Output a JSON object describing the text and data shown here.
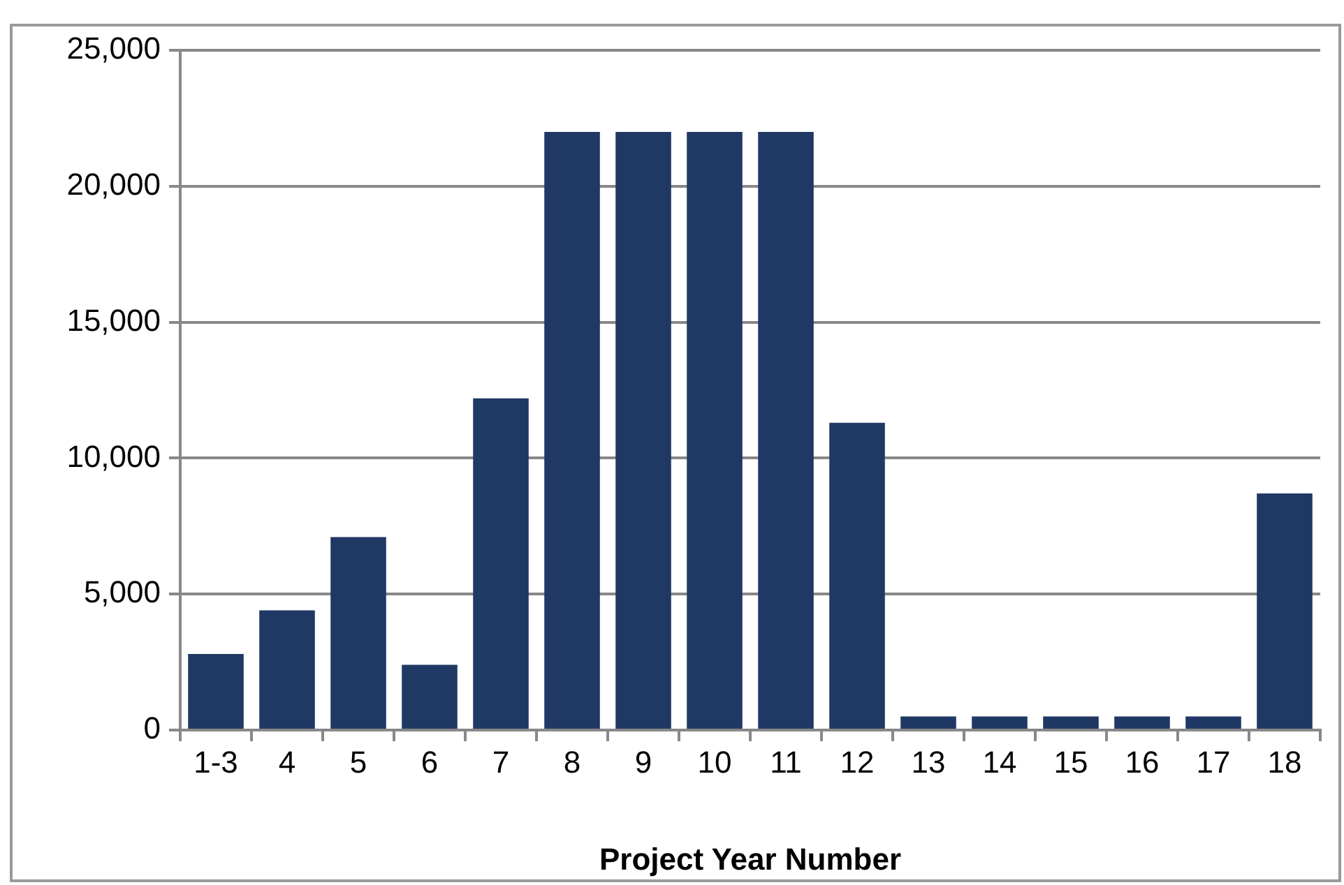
{
  "chart_data": {
    "type": "bar",
    "xlabel": "Project Year Number",
    "categories": [
      "1-3",
      "4",
      "5",
      "6",
      "7",
      "8",
      "9",
      "10",
      "11",
      "12",
      "13",
      "14",
      "15",
      "16",
      "17",
      "18"
    ],
    "values": [
      2800,
      4400,
      7100,
      2400,
      12200,
      22000,
      22000,
      22000,
      22000,
      11300,
      500,
      500,
      500,
      500,
      500,
      8700
    ],
    "color": "#203864",
    "ylim": [
      0,
      25000
    ],
    "yticks": [
      0,
      {
        "value": 5000,
        "label": "5,000"
      },
      {
        "value": 10000,
        "label": "10,000"
      },
      {
        "value": 15000,
        "label": "15,000"
      },
      {
        "value": 20000,
        "label": "20,000"
      },
      {
        "value": 25000,
        "label": "25,000"
      }
    ],
    "grid": "y",
    "legend": false
  }
}
